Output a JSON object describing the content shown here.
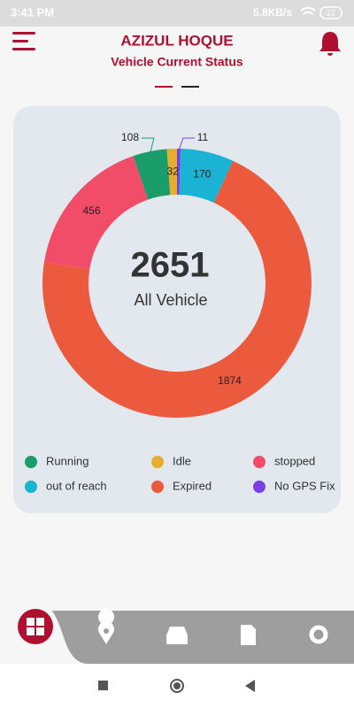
{
  "status_bar": {
    "time": "3:41 PM",
    "speed": "5.8KB/s",
    "battery": "22"
  },
  "header": {
    "title": "AZIZUL HOQUE",
    "subtitle": "Vehicle Current Status"
  },
  "chart_data": {
    "type": "donut",
    "categories": [
      "Running",
      "Idle",
      "stopped",
      "out of reach",
      "Expired",
      "No GPS Fix"
    ],
    "values": [
      108,
      32,
      456,
      170,
      1874,
      11
    ],
    "colors": [
      "#1a9c6b",
      "#e6ae2e",
      "#f24d68",
      "#1bb3d3",
      "#ec5a3e",
      "#7b3fe4"
    ],
    "center_value": "2651",
    "center_label": "All Vehicle"
  }
}
